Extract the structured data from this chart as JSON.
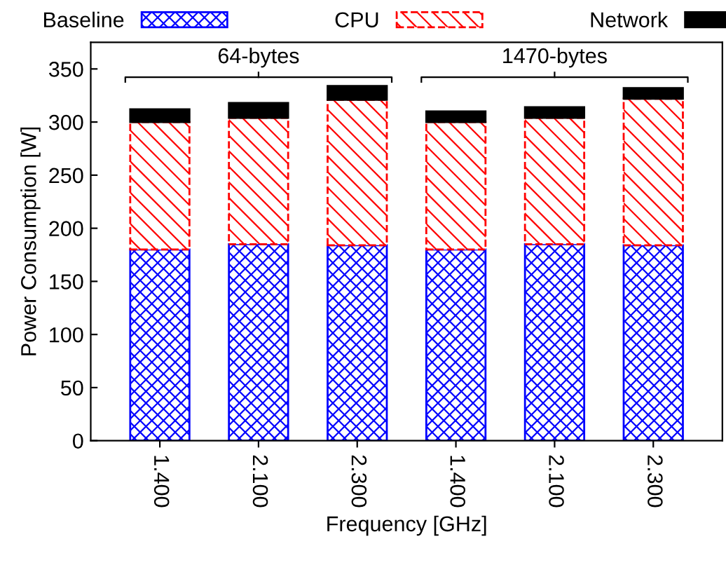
{
  "chart_data": {
    "type": "bar",
    "stacked": true,
    "xlabel": "Frequency [GHz]",
    "ylabel": "Power Consumption [W]",
    "categories": [
      "1.400",
      "2.100",
      "2.300",
      "1.400",
      "2.100",
      "2.300"
    ],
    "series": [
      {
        "name": "Baseline",
        "color": "#0000ff",
        "values": [
          180,
          185,
          184,
          180,
          185,
          184
        ]
      },
      {
        "name": "CPU",
        "color": "#ff0000",
        "values": [
          120,
          119,
          137,
          120,
          119,
          138
        ]
      },
      {
        "name": "Network",
        "color": "#000000",
        "values": [
          12,
          14,
          13,
          10,
          10,
          10
        ]
      }
    ],
    "annotations": [
      "64-bytes",
      "1470-bytes"
    ],
    "ylim": [
      0,
      375
    ],
    "yticks": [
      0,
      50,
      100,
      150,
      200,
      250,
      300,
      350
    ],
    "grid": false,
    "legend": "top"
  }
}
